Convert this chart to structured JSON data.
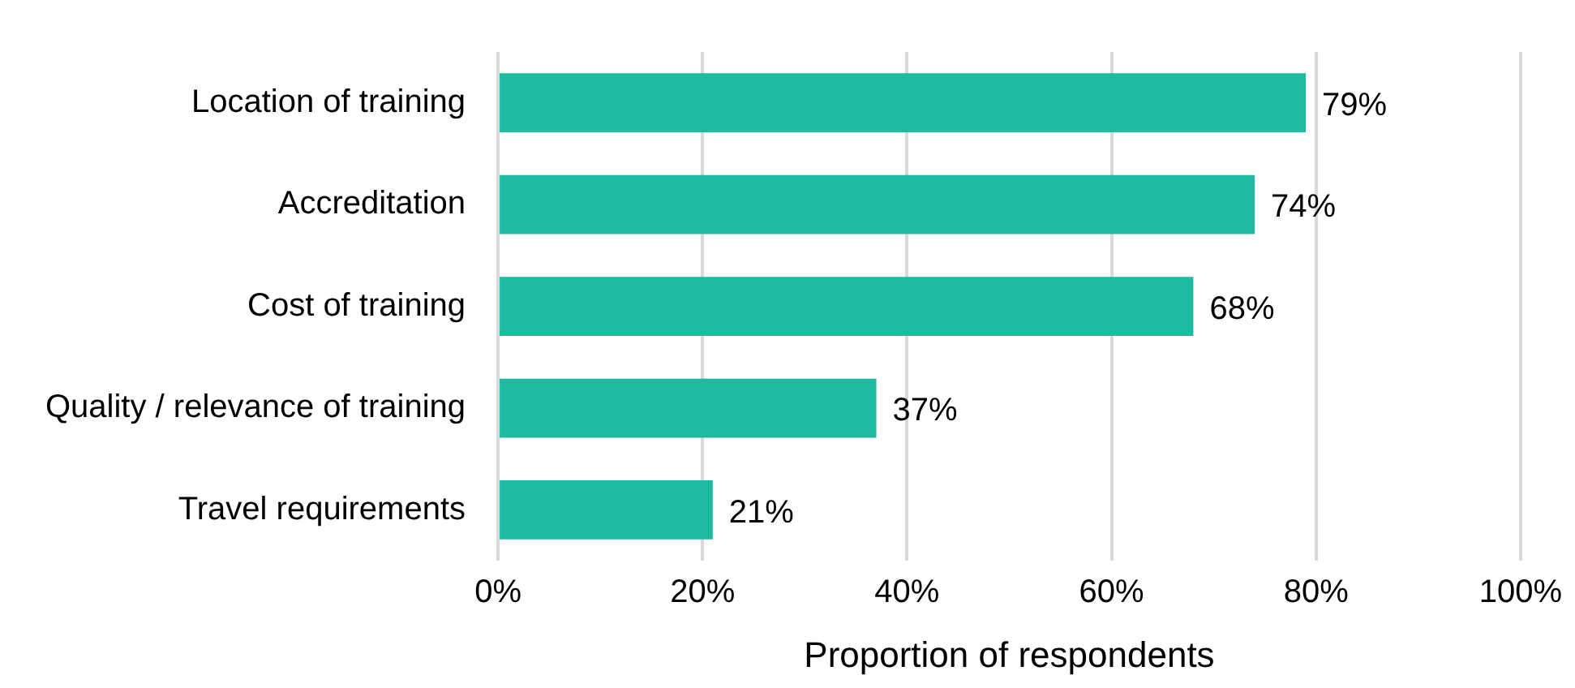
{
  "chart_data": {
    "type": "bar",
    "orientation": "horizontal",
    "xlabel": "Proportion of respondents",
    "categories": [
      "Location of training",
      "Accreditation",
      "Cost of training",
      "Quality / relevance of training",
      "Travel requirements"
    ],
    "values": [
      79,
      74,
      68,
      37,
      21
    ],
    "value_labels": [
      "79%",
      "74%",
      "68%",
      "37%",
      "21%"
    ],
    "color": "#1dbba0",
    "xlim": [
      0,
      100
    ],
    "xticks": [
      {
        "value": 0,
        "label": "0%"
      },
      {
        "value": 20,
        "label": "20%"
      },
      {
        "value": 40,
        "label": "40%"
      },
      {
        "value": 60,
        "label": "60%"
      },
      {
        "value": 80,
        "label": "80%"
      },
      {
        "value": 100,
        "label": "100%"
      }
    ],
    "grid": "x",
    "legend": false
  }
}
